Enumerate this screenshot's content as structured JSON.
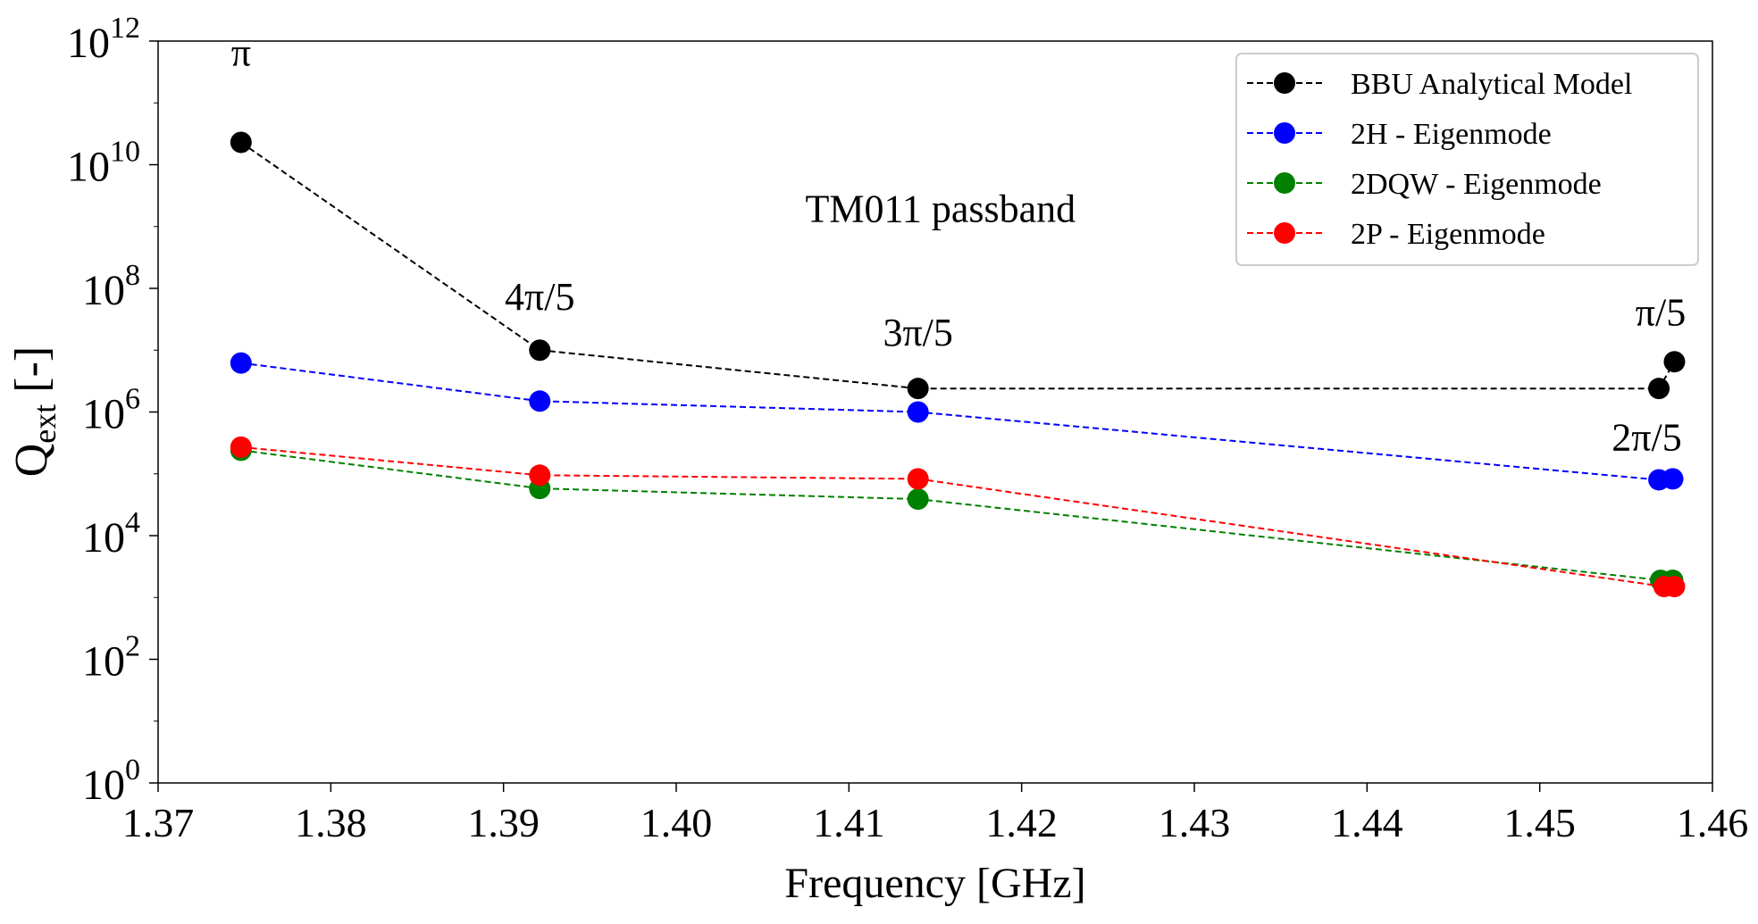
{
  "chart_data": {
    "type": "line",
    "xlabel": "Frequency [GHz]",
    "ylabel": {
      "main": "Q",
      "sub": "ext",
      "suffix": " [-]"
    },
    "xlim": [
      1.37,
      1.46
    ],
    "ylim_log10": [
      0,
      12
    ],
    "x_ticks": [
      {
        "value": 1.37,
        "label": "1.37"
      },
      {
        "value": 1.38,
        "label": "1.38"
      },
      {
        "value": 1.39,
        "label": "1.39"
      },
      {
        "value": 1.4,
        "label": "1.40"
      },
      {
        "value": 1.41,
        "label": "1.41"
      },
      {
        "value": 1.42,
        "label": "1.42"
      },
      {
        "value": 1.43,
        "label": "1.43"
      },
      {
        "value": 1.44,
        "label": "1.44"
      },
      {
        "value": 1.45,
        "label": "1.45"
      },
      {
        "value": 1.46,
        "label": "1.46"
      }
    ],
    "y_ticks": [
      {
        "exp": 0,
        "base": "10",
        "sup": "0"
      },
      {
        "exp": 2,
        "base": "10",
        "sup": "2"
      },
      {
        "exp": 4,
        "base": "10",
        "sup": "4"
      },
      {
        "exp": 6,
        "base": "10",
        "sup": "6"
      },
      {
        "exp": 8,
        "base": "10",
        "sup": "8"
      },
      {
        "exp": 10,
        "base": "10",
        "sup": "10"
      },
      {
        "exp": 12,
        "base": "10",
        "sup": "12"
      }
    ],
    "series": [
      {
        "name": "BBU Analytical Model",
        "color": "#000000",
        "x": [
          1.3748,
          1.3921,
          1.414,
          1.4569,
          1.4578
        ],
        "y": [
          23000000000.0,
          10000000.0,
          2400000.0,
          2400000.0,
          6500000.0
        ]
      },
      {
        "name": "2H - Eigenmode",
        "color": "#0000ff",
        "x": [
          1.3748,
          1.3921,
          1.414,
          1.4569,
          1.4577
        ],
        "y": [
          6200000.0,
          1500000.0,
          1000000.0,
          80000.0,
          83000.0
        ]
      },
      {
        "name": "2DQW - Eigenmode",
        "color": "#008000",
        "x": [
          1.3748,
          1.3921,
          1.414,
          1.457,
          1.4577
        ],
        "y": [
          240000.0,
          58000.0,
          39000.0,
          1900.0,
          1900.0
        ]
      },
      {
        "name": "2P - Eigenmode",
        "color": "#ff0000",
        "x": [
          1.3748,
          1.3921,
          1.414,
          1.4572,
          1.4578
        ],
        "y": [
          270000.0,
          95000.0,
          83000.0,
          1500.0,
          1500.0
        ]
      }
    ],
    "annotations": [
      {
        "text": "π",
        "x": 1.3748,
        "y": 400000000000.0
      },
      {
        "text": "4π/5",
        "x": 1.3921,
        "y": 45000000.0
      },
      {
        "text": "3π/5",
        "x": 1.414,
        "y": 12000000.0
      },
      {
        "text": "π/5",
        "x": 1.457,
        "y": 25000000.0
      },
      {
        "text": "2π/5",
        "x": 1.4562,
        "y": 240000.0
      },
      {
        "text": "TM011 passband",
        "x": 1.4153,
        "y": 1200000000.0
      }
    ],
    "legend_position": "top-right"
  }
}
